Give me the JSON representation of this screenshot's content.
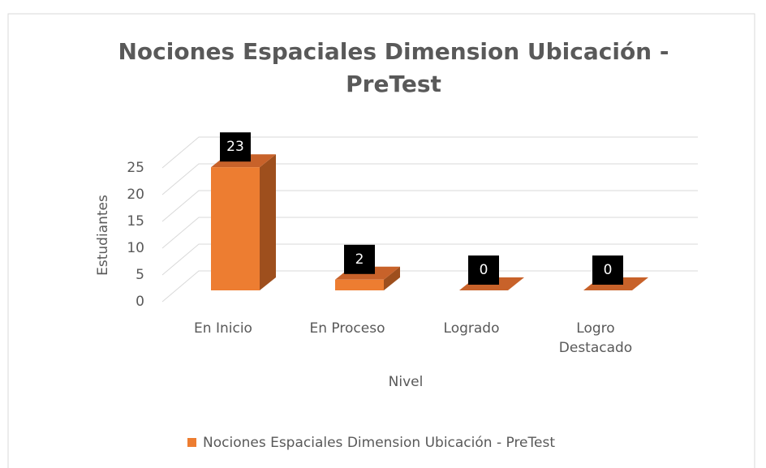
{
  "chart_data": {
    "type": "bar3d",
    "title": "Nociones Espaciales Dimension Ubicación - PreTest",
    "categories": [
      "En Inicio",
      "En Proceso",
      "Logrado",
      "Logro Destacado"
    ],
    "series": [
      {
        "name": "Nociones Espaciales Dimension Ubicación - PreTest",
        "color": "#ed7d31",
        "values": [
          23,
          2,
          0,
          0
        ]
      }
    ],
    "ylim": [
      0,
      25
    ],
    "yticks": [
      0,
      5,
      10,
      15,
      20,
      25
    ],
    "x_label": "Nivel",
    "y_label": "Estudiantes",
    "grid": true,
    "legend": "bottom"
  }
}
